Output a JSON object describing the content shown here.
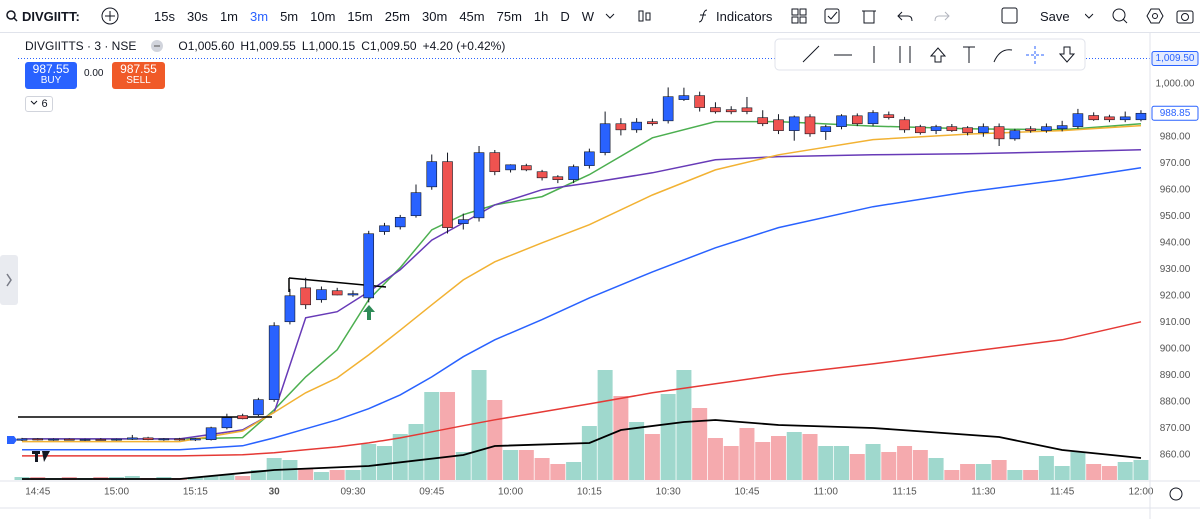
{
  "toolbar": {
    "symbol": "DIVGIITT:",
    "intervals": [
      "15s",
      "30s",
      "1m",
      "3m",
      "5m",
      "10m",
      "15m",
      "25m",
      "30m",
      "45m",
      "75m",
      "1h",
      "D",
      "W"
    ],
    "indicators": "Indicators",
    "save": "Save"
  },
  "legend": {
    "symbol": "DIVGIITTS · 3 · NSE",
    "open_label": "O",
    "open": "1,005.60",
    "high_label": "H",
    "high": "1,009.55",
    "low_label": "L",
    "low": "1,000.15",
    "close_label": "C",
    "close": "1,009.50",
    "change": "+4.20 (+0.42%)"
  },
  "trade": {
    "buy_price": "987.55",
    "buy_label": "BUY",
    "spread": "0.00",
    "sell_price": "987.55",
    "sell_label": "SELL"
  },
  "indicators_count": "6",
  "chart_data": {
    "type": "candlestick",
    "categories": [
      null,
      "14:45",
      null,
      null,
      null,
      null,
      "15:00",
      null,
      null,
      null,
      null,
      "15:15",
      null,
      null,
      null,
      null,
      "30",
      null,
      null,
      null,
      null,
      "09:30",
      null,
      null,
      null,
      null,
      "09:45",
      null,
      null,
      null,
      null,
      "10:00",
      null,
      null,
      null,
      null,
      "10:15",
      null,
      null,
      null,
      null,
      "10:30",
      null,
      null,
      null,
      null,
      "10:45",
      null,
      null,
      null,
      null,
      "11:00",
      null,
      null,
      null,
      null,
      "11:15",
      null,
      null,
      null,
      null,
      "11:30",
      null,
      null,
      null,
      null,
      "11:45",
      null,
      null,
      null,
      null,
      "12:00"
    ],
    "open": [
      865.5,
      866.0,
      865.6,
      865.9,
      865.5,
      865.8,
      865.6,
      865.9,
      866.4,
      865.7,
      866.0,
      865.6,
      865.7,
      870.2,
      874.8,
      875.1,
      880.8,
      910.2,
      923.0,
      918.5,
      921.9,
      920.3,
      919.2,
      944.2,
      946.0,
      950.2,
      961.1,
      970.6,
      947.2,
      949.4,
      974.0,
      967.5,
      969.1,
      966.8,
      964.9,
      963.8,
      969.1,
      974.0,
      984.9,
      982.6,
      985.7,
      986.0,
      994.0,
      995.5,
      991.0,
      990.2,
      990.9,
      987.2,
      986.4,
      982.3,
      987.5,
      981.9,
      983.8,
      987.9,
      984.9,
      988.3,
      986.4,
      983.8,
      982.3,
      983.8,
      983.4,
      981.5,
      983.8,
      979.2,
      983.0,
      982.3,
      983.0,
      983.8,
      988.0,
      987.5,
      986.4,
      986.4
    ],
    "high": [
      866.4,
      866.3,
      866.2,
      866.2,
      866.1,
      866.3,
      866.1,
      867.5,
      866.8,
      866.3,
      866.4,
      866.3,
      870.6,
      875.5,
      875.5,
      881.5,
      910.0,
      922.6,
      926.8,
      923.5,
      923.0,
      922.0,
      944.5,
      947.5,
      950.5,
      962.0,
      973.3,
      974.0,
      951.0,
      976.5,
      975.0,
      969.6,
      969.8,
      967.5,
      965.5,
      969.5,
      975.5,
      989.5,
      987.0,
      987.0,
      986.8,
      998.6,
      998.5,
      997.0,
      993.0,
      991.5,
      995.0,
      990.0,
      988.5,
      988.0,
      988.5,
      984.5,
      988.5,
      988.8,
      990.0,
      989.5,
      987.5,
      984.5,
      984.5,
      984.8,
      984.0,
      985.0,
      985.0,
      983.0,
      984.0,
      985.0,
      986.0,
      990.5,
      989.2,
      988.3,
      989.5,
      990.0
    ],
    "low": [
      865.2,
      865.4,
      865.3,
      865.4,
      865.2,
      865.4,
      865.3,
      865.6,
      865.5,
      865.3,
      865.3,
      865.2,
      865.4,
      869.6,
      873.4,
      874.6,
      880.0,
      909.2,
      915.0,
      917.4,
      920.2,
      919.6,
      917.5,
      943.0,
      945.0,
      949.5,
      960.0,
      943.5,
      945.0,
      948.0,
      965.5,
      966.5,
      967.0,
      963.5,
      962.5,
      962.5,
      968.0,
      973.0,
      980.5,
      981.5,
      984.2,
      985.0,
      993.5,
      989.5,
      988.7,
      988.5,
      988.5,
      984.0,
      981.0,
      978.5,
      980.0,
      978.8,
      982.8,
      984.0,
      984.0,
      986.5,
      981.5,
      980.8,
      981.0,
      981.8,
      980.5,
      980.0,
      976.5,
      978.5,
      981.5,
      981.5,
      982.0,
      983.0,
      986.0,
      985.5,
      985.5,
      985.8
    ],
    "close": [
      866.0,
      865.6,
      865.9,
      865.5,
      865.8,
      865.6,
      865.9,
      866.4,
      865.7,
      866.0,
      865.6,
      866.1,
      870.2,
      874.0,
      873.6,
      880.8,
      908.7,
      920.0,
      916.6,
      922.3,
      920.3,
      920.8,
      943.4,
      946.4,
      949.6,
      958.9,
      970.6,
      945.7,
      948.7,
      974.0,
      966.8,
      969.4,
      967.5,
      964.5,
      963.8,
      968.7,
      974.3,
      984.9,
      982.6,
      985.5,
      984.9,
      995.1,
      995.5,
      991.0,
      989.4,
      989.4,
      989.5,
      984.9,
      982.3,
      987.5,
      981.1,
      983.8,
      987.9,
      984.9,
      989.1,
      987.2,
      982.6,
      981.5,
      983.8,
      982.3,
      981.5,
      983.8,
      979.2,
      982.3,
      982.3,
      983.8,
      984.2,
      988.7,
      986.4,
      986.4,
      987.5,
      988.85
    ],
    "up_color": "#2962ff",
    "down_color": "#ef5350",
    "ylim": [
      850.5,
      1018
    ],
    "yticks": [
      {
        "value": 1000,
        "label": "1,000.00"
      },
      {
        "value": 980,
        "label": "980.00"
      },
      {
        "value": 970,
        "label": "970.00"
      },
      {
        "value": 960,
        "label": "960.00"
      },
      {
        "value": 950,
        "label": "950.00"
      },
      {
        "value": 940,
        "label": "940.00"
      },
      {
        "value": 930,
        "label": "930.00"
      },
      {
        "value": 920,
        "label": "920.00"
      },
      {
        "value": 910,
        "label": "910.00"
      },
      {
        "value": 900,
        "label": "900.00"
      },
      {
        "value": 890,
        "label": "890.00"
      },
      {
        "value": 880,
        "label": "880.00"
      },
      {
        "value": 870,
        "label": "870.00"
      },
      {
        "value": 860,
        "label": "860.00"
      }
    ],
    "grid": false,
    "price_labels": [
      {
        "value": 1009.5,
        "label": "1,009.50",
        "color": "#2962ff",
        "fill": "#e3ebff"
      },
      {
        "value": 988.85,
        "label": "988.85",
        "color": "#2962ff",
        "fill": "#ffffff"
      }
    ],
    "moving_averages": {
      "x": [
        0,
        10,
        14,
        16,
        18,
        20,
        22,
        24,
        26,
        28,
        30,
        33,
        36,
        40,
        44,
        48,
        54,
        60,
        66,
        71
      ],
      "series": [
        {
          "color": "#4caf50",
          "values": [
            866,
            866,
            866.5,
            877,
            889.4,
            899.6,
            918.5,
            930.6,
            944.9,
            950.6,
            954.3,
            957.4,
            965.7,
            979.6,
            985.7,
            985.7,
            984,
            983,
            982.6,
            984.9
          ]
        },
        {
          "color": "#673ab7",
          "values": [
            866,
            866,
            869.4,
            876,
            911.7,
            914,
            921.5,
            929.8,
            941,
            947.5,
            954.3,
            960,
            962.6,
            966.4,
            971.3,
            972.5,
            973.2,
            973.6,
            974.3,
            975.1
          ]
        },
        {
          "color": "#f2b233",
          "values": [
            865,
            865,
            869,
            876,
            883.4,
            889,
            897.7,
            907,
            916.6,
            926,
            932.8,
            940,
            946.8,
            958,
            967.5,
            973.2,
            978.9,
            981,
            982.3,
            984.2
          ]
        },
        {
          "color": "#2962ff",
          "values": [
            861.9,
            861.9,
            863.4,
            866.4,
            869.8,
            873.2,
            877.4,
            882.6,
            889.4,
            897,
            903.4,
            911,
            919.2,
            929,
            938.1,
            945.7,
            953.6,
            959.2,
            963.8,
            968.3
          ]
        },
        {
          "color": "#e53935",
          "values": [
            859.6,
            859.6,
            860,
            860.8,
            861.9,
            863,
            864.5,
            866.4,
            868.7,
            871,
            873.2,
            876.2,
            879.2,
            883.4,
            886.8,
            890.2,
            894.3,
            898.9,
            903.4,
            910.2
          ]
        }
      ]
    },
    "volume": {
      "values": [
        3,
        3,
        2,
        3,
        2,
        3,
        3,
        4,
        2,
        3,
        2,
        3,
        4,
        5,
        4,
        10,
        22,
        20,
        12,
        8,
        10,
        10,
        36,
        34,
        46,
        56,
        88,
        88,
        28,
        110,
        80,
        30,
        30,
        22,
        16,
        18,
        54,
        110,
        84,
        58,
        46,
        86,
        110,
        72,
        42,
        34,
        52,
        38,
        44,
        48,
        46,
        34,
        34,
        26,
        36,
        28,
        34,
        30,
        22,
        10,
        16,
        16,
        20,
        10,
        10,
        24,
        14,
        28,
        16,
        14,
        18,
        20
      ],
      "ylim": [
        0,
        150
      ],
      "up_color": "#9fd8cd",
      "down_color": "#f5aaae",
      "ma": {
        "color": "#000000",
        "x": [
          0,
          10,
          16,
          22,
          28,
          30,
          36,
          38,
          42,
          44,
          48,
          54,
          62,
          66,
          71
        ],
        "values": [
          1,
          1,
          10,
          14,
          25,
          34,
          37,
          50,
          58,
          60,
          55,
          52,
          43,
          30,
          22
        ]
      }
    }
  }
}
